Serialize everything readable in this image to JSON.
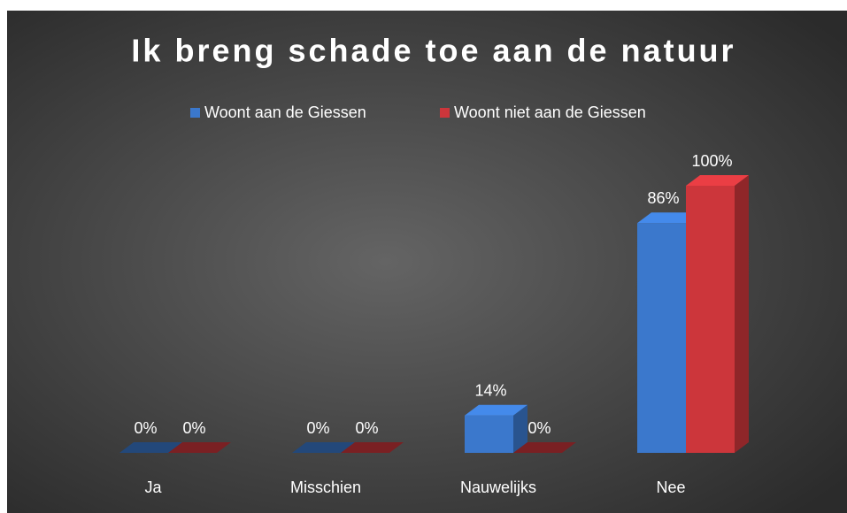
{
  "chart_data": {
    "type": "bar3d",
    "title": "Ik breng schade toe aan de natuur",
    "categories": [
      "Ja",
      "Misschien",
      "Nauwelijks",
      "Nee"
    ],
    "series": [
      {
        "name": "Woont aan de Giessen",
        "color": "#3b78cc",
        "values": [
          0,
          0,
          14,
          86
        ],
        "value_labels": [
          "0%",
          "0%",
          "14%",
          "86%"
        ]
      },
      {
        "name": "Woont niet aan de Giessen",
        "color": "#cc363b",
        "values": [
          0,
          0,
          0,
          100
        ],
        "value_labels": [
          "0%",
          "0%",
          "0%",
          "100%"
        ]
      }
    ],
    "legend": "top"
  }
}
